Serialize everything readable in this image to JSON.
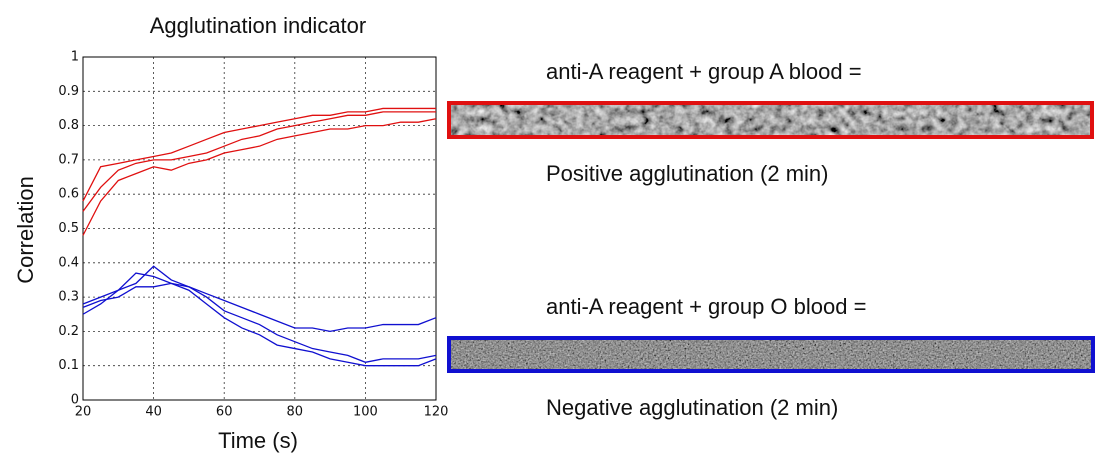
{
  "chart_data": {
    "type": "line",
    "title": "Agglutination indicator",
    "xlabel": "Time (s)",
    "ylabel": "Correlation",
    "x": [
      20,
      25,
      30,
      35,
      40,
      45,
      50,
      55,
      60,
      65,
      70,
      75,
      80,
      85,
      90,
      95,
      100,
      105,
      110,
      115,
      120
    ],
    "series": [
      {
        "color": "#e01010",
        "values": [
          0.58,
          0.68,
          0.69,
          0.7,
          0.71,
          0.72,
          0.74,
          0.76,
          0.78,
          0.79,
          0.8,
          0.81,
          0.82,
          0.83,
          0.83,
          0.84,
          0.84,
          0.85,
          0.85,
          0.85,
          0.85
        ]
      },
      {
        "color": "#e01010",
        "values": [
          0.55,
          0.62,
          0.67,
          0.69,
          0.7,
          0.7,
          0.71,
          0.72,
          0.74,
          0.76,
          0.77,
          0.79,
          0.8,
          0.81,
          0.82,
          0.83,
          0.83,
          0.84,
          0.84,
          0.84,
          0.84
        ]
      },
      {
        "color": "#e01010",
        "values": [
          0.48,
          0.58,
          0.64,
          0.66,
          0.68,
          0.67,
          0.69,
          0.7,
          0.72,
          0.73,
          0.74,
          0.76,
          0.77,
          0.78,
          0.79,
          0.79,
          0.8,
          0.8,
          0.81,
          0.81,
          0.82
        ]
      },
      {
        "color": "#1010d0",
        "values": [
          0.28,
          0.3,
          0.32,
          0.37,
          0.36,
          0.34,
          0.33,
          0.31,
          0.29,
          0.27,
          0.25,
          0.23,
          0.21,
          0.21,
          0.2,
          0.21,
          0.21,
          0.22,
          0.22,
          0.22,
          0.24
        ]
      },
      {
        "color": "#1010d0",
        "values": [
          0.25,
          0.28,
          0.32,
          0.34,
          0.39,
          0.35,
          0.33,
          0.3,
          0.26,
          0.24,
          0.22,
          0.19,
          0.17,
          0.15,
          0.14,
          0.13,
          0.11,
          0.12,
          0.12,
          0.12,
          0.13
        ]
      },
      {
        "color": "#1010d0",
        "values": [
          0.27,
          0.29,
          0.3,
          0.33,
          0.33,
          0.34,
          0.32,
          0.28,
          0.24,
          0.21,
          0.19,
          0.16,
          0.15,
          0.14,
          0.12,
          0.11,
          0.1,
          0.1,
          0.1,
          0.1,
          0.12
        ]
      }
    ],
    "xlim": [
      20,
      120
    ],
    "xticks": [
      20,
      40,
      60,
      80,
      100,
      120
    ],
    "ylim": [
      0,
      1
    ],
    "yticks": [
      0,
      0.1,
      0.2,
      0.3,
      0.4,
      0.5,
      0.6,
      0.7,
      0.8,
      0.9,
      1
    ],
    "grid": true
  },
  "panels": [
    {
      "caption": "anti-A reagent + group A blood =",
      "result": "Positive agglutination (2 min)",
      "color": "#e01010"
    },
    {
      "caption": "anti-A reagent + group O blood =",
      "result": "Negative agglutination (2 min)",
      "color": "#1010d0"
    }
  ]
}
